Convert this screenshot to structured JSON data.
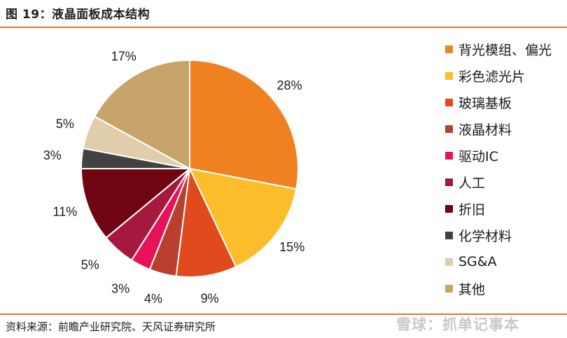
{
  "title": "图 19：液晶面板成本结构",
  "source": "资料来源：前瞻产业研究院、天风证券研究所",
  "watermark": "雪球：抓单记事本",
  "chart_data": {
    "type": "pie",
    "start": "12 o'clock",
    "direction": "clockwise",
    "legend_position": "right",
    "slices": [
      {
        "label": "背光模组、偏光",
        "value": 28,
        "text": "28%",
        "color": "#f08120"
      },
      {
        "label": "彩色滤光片",
        "value": 15,
        "text": "15%",
        "color": "#fbbd2a"
      },
      {
        "label": "玻璃基板",
        "value": 9,
        "text": "9%",
        "color": "#e04a1c"
      },
      {
        "label": "液晶材料",
        "value": 4,
        "text": "4%",
        "color": "#b8402d"
      },
      {
        "label": "驱动IC",
        "value": 3,
        "text": "3%",
        "color": "#e8125a"
      },
      {
        "label": "人工",
        "value": 5,
        "text": "5%",
        "color": "#a5193e"
      },
      {
        "label": "折旧",
        "value": 11,
        "text": "11%",
        "color": "#6e0511"
      },
      {
        "label": "化学材料",
        "value": 3,
        "text": "3%",
        "color": "#424242"
      },
      {
        "label": "SG&A",
        "value": 5,
        "text": "5%",
        "color": "#dfcdab"
      },
      {
        "label": "其他",
        "value": 17,
        "text": "17%",
        "color": "#c7a46c"
      }
    ]
  }
}
